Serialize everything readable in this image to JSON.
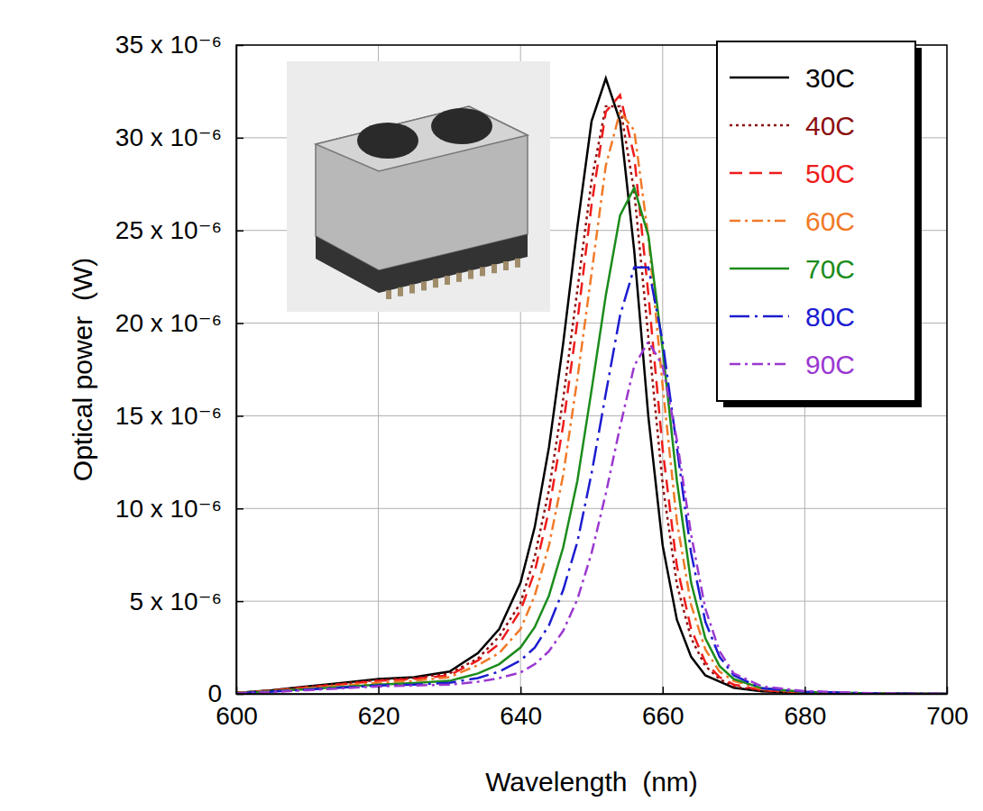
{
  "chart_data": {
    "type": "line",
    "x_label": "Wavelength  (nm)",
    "y_label": "Optical power  (W)",
    "xlim": [
      600,
      700
    ],
    "xticks": [
      600,
      620,
      640,
      660,
      680,
      700
    ],
    "ylim": [
      0,
      3.5e-05
    ],
    "yticks": [
      0,
      {
        "value": 5e-06,
        "label": "5 x 10⁻⁶"
      },
      {
        "value": 1e-05,
        "label": "10 x 10⁻⁶"
      },
      {
        "value": 1.5e-05,
        "label": "15 x 10⁻⁶"
      },
      {
        "value": 2e-05,
        "label": "20 x 10⁻⁶"
      },
      {
        "value": 2.5e-05,
        "label": "25 x 10⁻⁶"
      },
      {
        "value": 3e-05,
        "label": "30 x 10⁻⁶"
      },
      {
        "value": 3.5e-05,
        "label": "35 x 10⁻⁶"
      }
    ],
    "grid": true,
    "legend": "upper right",
    "x": [
      600,
      605,
      610,
      615,
      620,
      625,
      630,
      634,
      637,
      640,
      642,
      644,
      646,
      648,
      650,
      652,
      654,
      656,
      658,
      660,
      662,
      664,
      666,
      668,
      670,
      674,
      680,
      690,
      700
    ],
    "series": [
      {
        "name": "30C",
        "color": "#000000",
        "line_style": "solid",
        "values": [
          5e-08,
          2e-07,
          4e-07,
          6e-07,
          8e-07,
          9e-07,
          1.2e-06,
          2.2e-06,
          3.5e-06,
          6e-06,
          9e-06,
          1.33e-05,
          1.89e-05,
          2.52e-05,
          3.09e-05,
          3.32e-05,
          3.09e-05,
          2.39e-05,
          1.49e-05,
          8e-06,
          4e-06,
          2e-06,
          1e-06,
          6.6e-07,
          3.3e-07,
          1.3e-07,
          5e-08,
          1e-08,
          0
        ]
      },
      {
        "name": "40C",
        "color": "#8b1010",
        "line_style": "dotted",
        "values": [
          5e-08,
          1.8e-07,
          3.8e-07,
          5.5e-07,
          7.5e-07,
          8.5e-07,
          1.1e-06,
          1.9e-06,
          3.1e-06,
          4.9e-06,
          7.4e-06,
          1.1e-05,
          1.59e-05,
          2.18e-05,
          2.77e-05,
          3.17e-05,
          3.17e-05,
          2.71e-05,
          1.92e-05,
          1.13e-05,
          5.9e-06,
          3e-06,
          1.5e-06,
          8e-07,
          4e-07,
          1.6e-07,
          6e-08,
          1e-08,
          0
        ]
      },
      {
        "name": "50C",
        "color": "#ee1c1c",
        "line_style": "dashed",
        "values": [
          5e-08,
          1.7e-07,
          3.5e-07,
          5.2e-07,
          7e-07,
          8e-07,
          1e-06,
          1.8e-06,
          2.7e-06,
          4.5e-06,
          6.6e-06,
          9.9e-06,
          1.45e-05,
          2.01e-05,
          2.64e-05,
          3.14e-05,
          3.23e-05,
          2.9e-05,
          2.15e-05,
          1.32e-05,
          6.9e-06,
          3.5e-06,
          1.7e-06,
          9e-07,
          5e-07,
          2e-07,
          7e-08,
          1e-08,
          0
        ]
      },
      {
        "name": "60C",
        "color": "#f07a28",
        "line_style": "dashdot",
        "values": [
          4e-08,
          1.5e-07,
          3e-07,
          4.5e-07,
          6e-07,
          7e-07,
          9e-07,
          1.55e-06,
          2.2e-06,
          3.5e-06,
          5.3e-06,
          8e-06,
          1.18e-05,
          1.7e-05,
          2.27e-05,
          2.85e-05,
          3.14e-05,
          3.04e-05,
          2.46e-05,
          1.66e-05,
          9.3e-06,
          4.8e-06,
          2.4e-06,
          1.2e-06,
          7e-07,
          2.6e-07,
          9e-08,
          1.5e-08,
          0
        ]
      },
      {
        "name": "70C",
        "color": "#1c8c1c",
        "line_style": "solid",
        "values": [
          4e-08,
          1.3e-07,
          2.6e-07,
          3.8e-07,
          5e-07,
          5.8e-07,
          7e-07,
          1.1e-06,
          1.6e-06,
          2.5e-06,
          3.6e-06,
          5.3e-06,
          7.9e-06,
          1.15e-05,
          1.64e-05,
          2.15e-05,
          2.58e-05,
          2.73e-05,
          2.47e-05,
          1.86e-05,
          1.15e-05,
          6e-06,
          3e-06,
          1.5e-06,
          8e-07,
          3e-07,
          1e-07,
          2e-08,
          0
        ]
      },
      {
        "name": "80C",
        "color": "#1c1cd0",
        "line_style": "longdashdot",
        "values": [
          3e-08,
          1.2e-07,
          2.3e-07,
          3.4e-07,
          4.5e-07,
          5e-07,
          6e-07,
          8.5e-07,
          1.2e-06,
          1.8e-06,
          2.5e-06,
          3.7e-06,
          5.6e-06,
          8.2e-06,
          1.19e-05,
          1.62e-05,
          2.04e-05,
          2.3e-05,
          2.3e-05,
          1.9e-05,
          1.33e-05,
          7.6e-06,
          3.9e-06,
          2e-06,
          1e-06,
          3e-07,
          1.2e-07,
          2e-08,
          0
        ]
      },
      {
        "name": "90C",
        "color": "#9a38d0",
        "line_style": "dashdot",
        "values": [
          3e-08,
          1e-07,
          2e-07,
          3e-07,
          4e-07,
          4.5e-07,
          5e-07,
          6.5e-07,
          8.5e-07,
          1.15e-06,
          1.6e-06,
          2.3e-06,
          3.4e-06,
          5.1e-06,
          7.6e-06,
          1.08e-05,
          1.44e-05,
          1.77e-05,
          1.9e-05,
          1.77e-05,
          1.37e-05,
          8.6e-06,
          4.6e-06,
          2.3e-06,
          1.1e-06,
          4e-07,
          1.5e-07,
          3e-08,
          0
        ]
      }
    ]
  }
}
